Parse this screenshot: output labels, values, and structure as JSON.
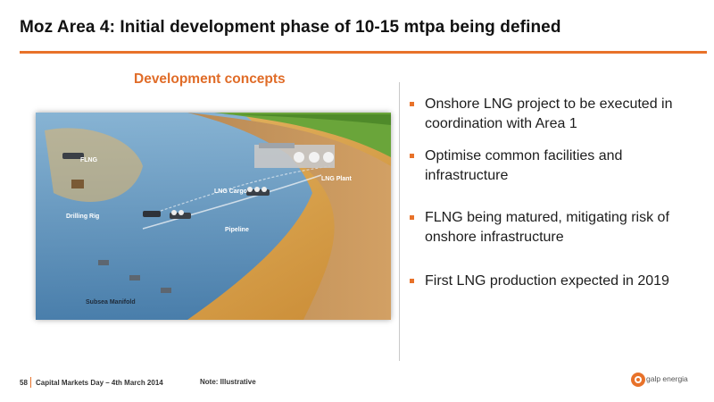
{
  "slide": {
    "title": "Moz Area 4: Initial development phase of 10-15 mtpa being defined",
    "subtitle": "Development concepts"
  },
  "illustration": {
    "labels": {
      "flng": "FLNG",
      "drilling_rig": "Drilling Rig",
      "lng_cargo": "LNG Cargo",
      "lng_plant": "LNG Plant",
      "pipeline": "Pipeline",
      "subsea_manifold": "Subsea Manifold"
    }
  },
  "bullets": [
    "Onshore LNG project to be executed in coordination with Area 1",
    "Optimise common facilities and infrastructure",
    "FLNG being matured, mitigating risk of onshore infrastructure",
    "First LNG production expected in 2019"
  ],
  "footer": {
    "page_number": "58",
    "event": "Capital Markets Day – 4th March 2014",
    "note": "Note: Illustrative"
  },
  "logo": {
    "text": "galp energia",
    "icon": "galp-energia-logo-icon"
  },
  "colors": {
    "accent": "#e8722a",
    "sea": "#4f8fc4",
    "seabed": "#d9a44f",
    "land": "#6aa53a"
  }
}
